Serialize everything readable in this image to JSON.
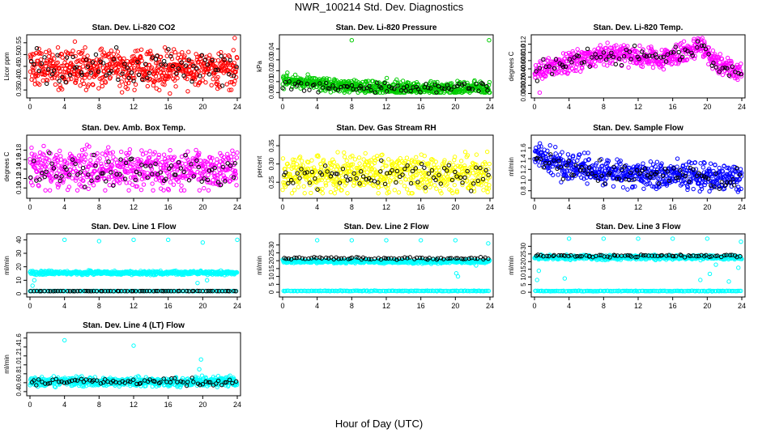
{
  "figure": {
    "title": "NWR_100214  Std. Dev. Diagnostics",
    "xlabel": "Hour of Day (UTC)"
  },
  "chart_data": [
    {
      "type": "scatter",
      "title": "Stan. Dev. Li-820 CO2",
      "ylabel": "Licor ppm",
      "xlim": [
        0,
        24
      ],
      "ylim": [
        0.33,
        0.57
      ],
      "xticks": [
        0,
        4,
        8,
        12,
        16,
        20,
        24
      ],
      "yticks": [
        0.35,
        0.4,
        0.45,
        0.5,
        0.55
      ],
      "ytick_labels": [
        "0.35",
        "0.40",
        "0.45",
        "0.50",
        "0.55"
      ],
      "color": "#ff0000",
      "series": [
        {
          "gen": {
            "n": 640,
            "base": [
              0.445
            ],
            "noise": 0.04,
            "clip": [
              0.34,
              0.53
            ]
          }
        },
        {
          "color": "#000000",
          "gen": {
            "n": 80,
            "base": [
              0.45
            ],
            "noise": 0.035,
            "clip": [
              0.34,
              0.53
            ]
          }
        }
      ],
      "outliers": [
        [
          6.5,
          0.35
        ],
        [
          16.2,
          0.335
        ],
        [
          12.1,
          0.35
        ],
        [
          23.7,
          0.58
        ],
        [
          5.2,
          0.555
        ]
      ]
    },
    {
      "type": "scatter",
      "title": "Stan. Dev. Li-820 Pressure",
      "ylabel": "kPa",
      "xlim": [
        0,
        24
      ],
      "ylim": [
        -0.002,
        0.05
      ],
      "xticks": [
        0,
        4,
        8,
        12,
        16,
        20,
        24
      ],
      "yticks": [
        0.0,
        0.01,
        0.02,
        0.03,
        0.04
      ],
      "ytick_labels": [
        "0.00",
        "0.01",
        "0.02",
        "0.03",
        "0.04"
      ],
      "color": "#00cc00",
      "series": [
        {
          "gen": {
            "n": 640,
            "base": [
              0.012,
              0.007,
              0.005,
              0.004,
              0.004,
              0.004
            ],
            "noise": 0.003,
            "clip": [
              0.0,
              0.02
            ]
          }
        },
        {
          "color": "#000000",
          "gen": {
            "n": 80,
            "base": [
              0.008,
              0.005,
              0.004,
              0.004,
              0.004,
              0.004
            ],
            "noise": 0.002,
            "clip": [
              0.0,
              0.02
            ]
          }
        }
      ],
      "outliers": [
        [
          8.0,
          0.048
        ],
        [
          23.9,
          0.048
        ]
      ]
    },
    {
      "type": "scatter",
      "title": "Stan. Dev. Li-820 Temp.",
      "ylabel": "degrees C",
      "xlim": [
        0,
        24
      ],
      "ylim": [
        -0.0003,
        0.0135
      ],
      "xticks": [
        0,
        4,
        8,
        12,
        16,
        20,
        24
      ],
      "yticks": [
        0.0,
        0.002,
        0.004,
        0.006,
        0.008,
        0.01,
        0.012
      ],
      "ytick_labels": [
        "0.000",
        "0.002",
        "0.004",
        "0.006",
        "0.008",
        "0.010",
        "0.012"
      ],
      "color": "#ff00ff",
      "series": [
        {
          "gen": {
            "n": 600,
            "base": [
              0.005,
              0.007,
              0.008,
              0.009,
              0.0095,
              0.009,
              0.0085,
              0.0095,
              0.011,
              0.007,
              0.005
            ],
            "noise": 0.0012,
            "clip": [
              0.0,
              0.0135
            ]
          }
        },
        {
          "color": "#000000",
          "gen": {
            "n": 80,
            "base": [
              0.005,
              0.007,
              0.008,
              0.009,
              0.0095,
              0.009,
              0.0085,
              0.0095,
              0.011,
              0.007,
              0.005
            ],
            "noise": 0.001,
            "clip": [
              0.0,
              0.0135
            ]
          }
        }
      ],
      "outliers": [
        [
          0.6,
          0.0002
        ]
      ]
    },
    {
      "type": "scatter",
      "title": "Stan. Dev. Amb. Box Temp.",
      "ylabel": "degrees C",
      "xlim": [
        0,
        24
      ],
      "ylim": [
        0.085,
        0.205
      ],
      "xticks": [
        0,
        4,
        8,
        12,
        16,
        20,
        24
      ],
      "yticks": [
        0.1,
        0.12,
        0.14,
        0.16,
        0.18
      ],
      "ytick_labels": [
        "0.10",
        "0.12",
        "0.14",
        "0.16",
        "0.18"
      ],
      "color": "#ff00ff",
      "series": [
        {
          "gen": {
            "n": 600,
            "base": [
              0.14
            ],
            "noise": 0.02,
            "clip": [
              0.095,
              0.2
            ]
          }
        },
        {
          "color": "#000000",
          "gen": {
            "n": 80,
            "base": [
              0.138
            ],
            "noise": 0.018,
            "clip": [
              0.1,
              0.19
            ]
          }
        }
      ]
    },
    {
      "type": "scatter",
      "title": "Stan. Dev. Gas Stream RH",
      "ylabel": "percent",
      "xlim": [
        0,
        24
      ],
      "ylim": [
        0.215,
        0.37
      ],
      "xticks": [
        0,
        4,
        8,
        12,
        16,
        20,
        24
      ],
      "yticks": [
        0.25,
        0.3,
        0.35
      ],
      "ytick_labels": [
        "0.25",
        "0.30",
        "0.35"
      ],
      "color": "#ffff00",
      "series": [
        {
          "gen": {
            "n": 600,
            "base": [
              0.272
            ],
            "noise": 0.025,
            "clip": [
              0.22,
              0.365
            ]
          }
        },
        {
          "color": "#000000",
          "gen": {
            "n": 80,
            "base": [
              0.27
            ],
            "noise": 0.02,
            "clip": [
              0.225,
              0.33
            ]
          }
        }
      ]
    },
    {
      "type": "scatter",
      "title": "Stan. Dev. Sample Flow",
      "ylabel": "ml/min",
      "xlim": [
        0,
        24
      ],
      "ylim": [
        0.72,
        1.78
      ],
      "xticks": [
        0,
        4,
        8,
        12,
        16,
        20,
        24
      ],
      "yticks": [
        0.8,
        1.0,
        1.2,
        1.4,
        1.6
      ],
      "ytick_labels": [
        "0.8",
        "1.0",
        "1.2",
        "1.4",
        "1.6"
      ],
      "color": "#0000ff",
      "series": [
        {
          "gen": {
            "n": 620,
            "base": [
              1.45,
              1.25,
              1.15,
              1.12,
              1.1,
              1.05,
              1.05
            ],
            "noise": 0.12,
            "clip": [
              0.75,
              1.75
            ]
          }
        },
        {
          "color": "#000000",
          "gen": {
            "n": 80,
            "base": [
              1.4,
              1.2,
              1.12,
              1.1,
              1.08,
              1.03,
              1.02
            ],
            "noise": 0.1,
            "clip": [
              0.78,
              1.7
            ]
          }
        }
      ]
    },
    {
      "type": "scatter",
      "title": "Stan. Dev. Line 1 Flow",
      "ylabel": "ml/min",
      "xlim": [
        0,
        24
      ],
      "ylim": [
        0,
        42
      ],
      "xticks": [
        0,
        4,
        8,
        12,
        16,
        20,
        24
      ],
      "yticks": [
        0,
        10,
        20,
        30,
        40
      ],
      "ytick_labels": [
        "0",
        "10",
        "20",
        "30",
        "40"
      ],
      "color": "#00ffff",
      "series": [
        {
          "gen": {
            "n": 520,
            "base": [
              15.5
            ],
            "noise": 0.7,
            "clip": [
              13,
              18
            ]
          }
        },
        {
          "gen": {
            "n": 130,
            "base": [
              2.0
            ],
            "noise": 0.05,
            "clip": [
              1.8,
              2.2
            ]
          }
        },
        {
          "color": "#000000",
          "gen": {
            "n": 75,
            "base": [
              2.0
            ],
            "noise": 0.05,
            "clip": [
              1.8,
              2.2
            ]
          }
        }
      ],
      "outliers": [
        [
          4.0,
          40
        ],
        [
          8.0,
          39
        ],
        [
          12.0,
          40
        ],
        [
          16.0,
          40
        ],
        [
          20.0,
          38
        ],
        [
          24.0,
          40
        ],
        [
          0.5,
          10
        ],
        [
          0.3,
          6
        ],
        [
          20.5,
          10
        ],
        [
          19.4,
          8
        ]
      ]
    },
    {
      "type": "scatter",
      "title": "Stan. Dev. Line 2 Flow",
      "ylabel": "ml/min",
      "xlim": [
        0,
        24
      ],
      "ylim": [
        -1,
        35
      ],
      "xticks": [
        0,
        4,
        8,
        12,
        16,
        20,
        24
      ],
      "yticks": [
        0,
        5,
        10,
        15,
        20,
        25,
        30
      ],
      "ytick_labels": [
        "0",
        "5",
        "10",
        "15",
        "20",
        "25",
        "30"
      ],
      "color": "#00ffff",
      "series": [
        {
          "gen": {
            "n": 520,
            "base": [
              19.5
            ],
            "noise": 0.6,
            "clip": [
              17,
              22
            ]
          }
        },
        {
          "gen": {
            "n": 150,
            "base": [
              0.8
            ],
            "noise": 0.1,
            "clip": [
              0.5,
              1.2
            ]
          }
        },
        {
          "color": "#000000",
          "gen": {
            "n": 75,
            "base": [
              21.5
            ],
            "noise": 0.4,
            "clip": [
              20,
              23
            ]
          }
        }
      ],
      "outliers": [
        [
          4.0,
          33
        ],
        [
          8.0,
          33
        ],
        [
          12.0,
          33
        ],
        [
          16.0,
          33
        ],
        [
          20.0,
          33
        ],
        [
          23.8,
          31
        ],
        [
          20.1,
          12
        ],
        [
          20.3,
          10
        ],
        [
          22.4,
          17
        ]
      ]
    },
    {
      "type": "scatter",
      "title": "Stan. Dev. Line 3 Flow",
      "ylabel": "ml/min",
      "xlim": [
        0,
        24
      ],
      "ylim": [
        -1,
        36
      ],
      "xticks": [
        0,
        4,
        8,
        12,
        16,
        20,
        24
      ],
      "yticks": [
        0,
        5,
        10,
        15,
        20,
        25,
        30
      ],
      "ytick_labels": [
        "0",
        "5",
        "10",
        "15",
        "20",
        "25",
        "30"
      ],
      "color": "#00ffff",
      "series": [
        {
          "gen": {
            "n": 520,
            "base": [
              22.8
            ],
            "noise": 0.7,
            "clip": [
              20,
              25
            ]
          }
        },
        {
          "gen": {
            "n": 150,
            "base": [
              0.8
            ],
            "noise": 0.1,
            "clip": [
              0.5,
              1.2
            ]
          }
        },
        {
          "color": "#000000",
          "gen": {
            "n": 75,
            "base": [
              23.8
            ],
            "noise": 0.4,
            "clip": [
              22,
              25.5
            ]
          }
        }
      ],
      "outliers": [
        [
          4.0,
          35
        ],
        [
          8.0,
          35
        ],
        [
          12.0,
          35
        ],
        [
          16.0,
          35
        ],
        [
          20.0,
          35
        ],
        [
          23.9,
          33
        ],
        [
          0.3,
          8
        ],
        [
          0.5,
          14
        ],
        [
          3.5,
          9
        ],
        [
          19.2,
          8
        ],
        [
          20.3,
          12
        ],
        [
          21.0,
          18
        ],
        [
          22.5,
          7
        ],
        [
          23.6,
          16
        ]
      ]
    },
    {
      "type": "scatter",
      "title": "Stan. Dev. Line 4 (LT) Flow",
      "ylabel": "ml/min",
      "xlim": [
        0,
        24
      ],
      "ylim": [
        0.38,
        1.65
      ],
      "xticks": [
        0,
        4,
        8,
        12,
        16,
        20,
        24
      ],
      "yticks": [
        0.4,
        0.6,
        0.8,
        1.0,
        1.2,
        1.4,
        1.6
      ],
      "ytick_labels": [
        "0.4",
        "0.6",
        "0.8",
        "1.0",
        "1.2",
        "1.4",
        "1.6"
      ],
      "color": "#00ffff",
      "series": [
        {
          "gen": {
            "n": 620,
            "base": [
              0.62
            ],
            "noise": 0.05,
            "clip": [
              0.5,
              0.78
            ]
          }
        },
        {
          "color": "#000000",
          "gen": {
            "n": 75,
            "base": [
              0.62
            ],
            "noise": 0.04,
            "clip": [
              0.52,
              0.72
            ]
          }
        }
      ],
      "outliers": [
        [
          4.0,
          1.55
        ],
        [
          12.0,
          1.43
        ],
        [
          19.8,
          1.12
        ],
        [
          19.6,
          0.9
        ]
      ]
    }
  ]
}
